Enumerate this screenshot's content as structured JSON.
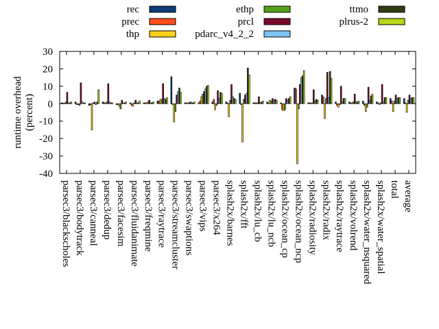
{
  "chart_data": {
    "type": "bar",
    "ylabel": "runtime overhead\n(percent)",
    "xlabel": "",
    "title": "",
    "ylim": [
      -40,
      30
    ],
    "yticks": [
      -40,
      -30,
      -20,
      -10,
      0,
      10,
      20,
      30
    ],
    "grid": false,
    "legend_position": "top",
    "categories": [
      "parsec3/blackscholes",
      "parsec3/bodytrack",
      "parsec3/canneal",
      "parsec3/dedup",
      "parsec3/facesim",
      "parsec3/fluidanimate",
      "parsec3/freqmine",
      "parsec3/raytrace",
      "parsec3/streamcluster",
      "parsec3/swaptions",
      "parsec3/vips",
      "parsec3/x264",
      "splash2x/barnes",
      "splash2x/fft",
      "splash2x/lu_cb",
      "splash2x/lu_ncb",
      "splash2x/ocean_cp",
      "splash2x/ocean_ncp",
      "splash2x/radiosity",
      "splash2x/radix",
      "splash2x/raytrace",
      "splash2x/volrend",
      "splash2x/water_nsquared",
      "splash2x/water_spatial",
      "total",
      "average"
    ],
    "series": [
      {
        "name": "rec",
        "color": "#0b3f7a",
        "values": [
          0.5,
          1.0,
          -1.0,
          1.0,
          -0.5,
          0.5,
          0.5,
          1.5,
          15.5,
          0.5,
          0.5,
          1.0,
          1.0,
          6.0,
          0.5,
          1.0,
          0.5,
          9.0,
          0.5,
          5.0,
          1.0,
          1.0,
          1.5,
          1.0,
          3.0,
          3.0
        ]
      },
      {
        "name": "prec",
        "color": "#ff4d1a",
        "values": [
          0.3,
          -0.5,
          -0.5,
          0.5,
          -0.5,
          -1.0,
          0.5,
          1.5,
          -0.5,
          0.5,
          1.5,
          2.5,
          0.5,
          -0.5,
          0.5,
          0.5,
          -3.5,
          8.5,
          0.5,
          4.0,
          -1.0,
          0.5,
          -1.0,
          0.5,
          1.5,
          0.5
        ]
      },
      {
        "name": "thp",
        "color": "#ffd21a",
        "values": [
          0.2,
          -0.5,
          -15.0,
          0.5,
          -1.5,
          -1.5,
          0.5,
          2.5,
          -10.5,
          0.5,
          4.0,
          -3.5,
          -7.5,
          -22.0,
          0.5,
          2.0,
          -4.0,
          -34.5,
          0.5,
          -8.5,
          -2.0,
          0.5,
          -4.5,
          -0.5,
          -4.5,
          -5.0
        ]
      },
      {
        "name": "ethp",
        "color": "#52a31a",
        "values": [
          1.0,
          -1.0,
          0.5,
          1.0,
          -3.0,
          0.5,
          1.0,
          2.5,
          -4.5,
          0.5,
          5.5,
          -1.0,
          2.0,
          2.5,
          0.5,
          1.5,
          -3.5,
          -3.0,
          0.5,
          3.0,
          -0.5,
          1.0,
          -2.0,
          0.5,
          1.5,
          2.0
        ]
      },
      {
        "name": "prcl",
        "color": "#7a0a2a",
        "values": [
          6.5,
          12.0,
          1.0,
          11.5,
          2.0,
          2.0,
          2.0,
          11.5,
          5.0,
          1.0,
          7.0,
          7.5,
          11.0,
          5.0,
          4.0,
          3.0,
          3.0,
          11.0,
          8.0,
          18.0,
          10.0,
          5.5,
          9.5,
          11.0,
          5.0,
          5.0
        ]
      },
      {
        "name": "pdarc_v4_2_2",
        "color": "#7fc4f5",
        "values": [
          0.5,
          1.0,
          -0.5,
          1.0,
          0.5,
          0.5,
          0.5,
          3.0,
          7.0,
          0.5,
          8.5,
          3.0,
          4.0,
          6.0,
          0.5,
          2.0,
          2.0,
          15.0,
          1.5,
          3.5,
          1.0,
          1.0,
          2.0,
          1.0,
          3.0,
          3.0
        ]
      },
      {
        "name": "ttmo",
        "color": "#2f3d14",
        "values": [
          0.5,
          0.5,
          1.0,
          0.5,
          0.5,
          0.5,
          0.5,
          2.5,
          9.0,
          0.5,
          10.0,
          6.5,
          3.0,
          20.5,
          1.0,
          2.5,
          3.0,
          16.0,
          2.5,
          18.5,
          3.0,
          1.0,
          4.5,
          3.5,
          3.5,
          3.5
        ]
      },
      {
        "name": "plrus-2",
        "color": "#b5d61a",
        "values": [
          1.0,
          0.5,
          8.0,
          0.5,
          1.0,
          1.5,
          1.0,
          3.5,
          6.5,
          1.0,
          10.5,
          6.0,
          2.5,
          16.5,
          1.5,
          2.0,
          4.0,
          19.0,
          2.0,
          14.5,
          3.0,
          1.5,
          5.5,
          3.5,
          3.5,
          3.5
        ]
      }
    ]
  }
}
